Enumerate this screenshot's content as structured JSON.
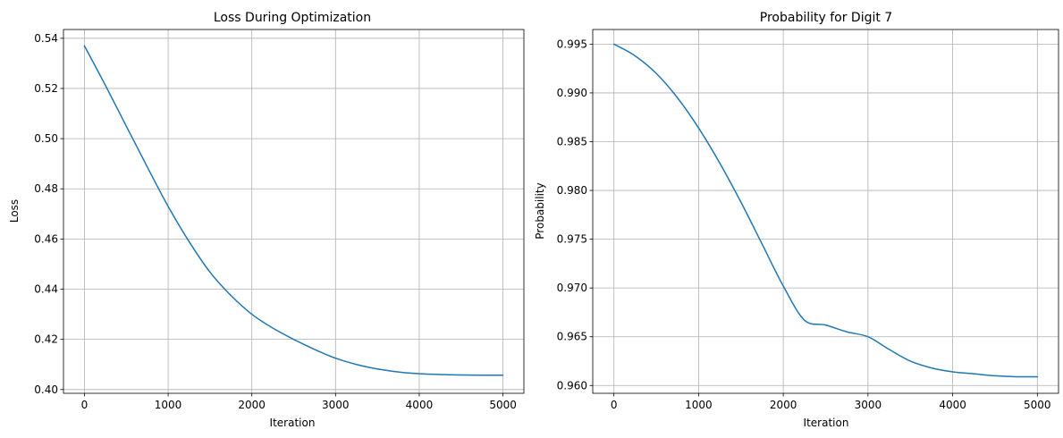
{
  "chart_data": [
    {
      "type": "line",
      "title": "Loss During Optimization",
      "xlabel": "Iteration",
      "ylabel": "Loss",
      "xlim": [
        -250,
        5250
      ],
      "ylim": [
        0.3985,
        0.5435
      ],
      "xticks": [
        0,
        1000,
        2000,
        3000,
        4000,
        5000
      ],
      "xtick_labels": [
        "0",
        "1000",
        "2000",
        "3000",
        "4000",
        "5000"
      ],
      "yticks": [
        0.4,
        0.42,
        0.44,
        0.46,
        0.48,
        0.5,
        0.52,
        0.54
      ],
      "ytick_labels": [
        "0.40",
        "0.42",
        "0.44",
        "0.46",
        "0.48",
        "0.50",
        "0.52",
        "0.54"
      ],
      "grid": true,
      "series": [
        {
          "color": "#1f77b4",
          "x": [
            0,
            250,
            500,
            750,
            1000,
            1250,
            1500,
            1750,
            2000,
            2250,
            2500,
            2750,
            3000,
            3250,
            3500,
            3750,
            4000,
            4250,
            4500,
            4750,
            5000
          ],
          "y": [
            0.537,
            0.5213,
            0.505,
            0.4888,
            0.473,
            0.459,
            0.4468,
            0.4375,
            0.43,
            0.4245,
            0.42,
            0.416,
            0.4125,
            0.41,
            0.4082,
            0.407,
            0.4063,
            0.406,
            0.4058,
            0.4057,
            0.4057
          ]
        }
      ]
    },
    {
      "type": "line",
      "title": "Probability for Digit 7",
      "xlabel": "Iteration",
      "ylabel": "Probability",
      "xlim": [
        -250,
        5250
      ],
      "ylim": [
        0.9592,
        0.9965
      ],
      "xticks": [
        0,
        1000,
        2000,
        3000,
        4000,
        5000
      ],
      "xtick_labels": [
        "0",
        "1000",
        "2000",
        "3000",
        "4000",
        "5000"
      ],
      "yticks": [
        0.96,
        0.965,
        0.97,
        0.975,
        0.98,
        0.985,
        0.99,
        0.995
      ],
      "ytick_labels": [
        "0.960",
        "0.965",
        "0.970",
        "0.975",
        "0.980",
        "0.985",
        "0.990",
        "0.995"
      ],
      "grid": true,
      "series": [
        {
          "color": "#1f77b4",
          "x": [
            0,
            250,
            500,
            750,
            1000,
            1250,
            1500,
            1750,
            2000,
            2250,
            2500,
            2750,
            3000,
            3250,
            3500,
            3750,
            4000,
            4250,
            4500,
            4750,
            5000
          ],
          "y": [
            0.995,
            0.9938,
            0.992,
            0.9895,
            0.9864,
            0.9828,
            0.9788,
            0.9745,
            0.9702,
            0.9667,
            0.9662,
            0.9655,
            0.965,
            0.9637,
            0.9625,
            0.9618,
            0.9614,
            0.9612,
            0.961,
            0.9609,
            0.9609
          ]
        }
      ]
    }
  ]
}
